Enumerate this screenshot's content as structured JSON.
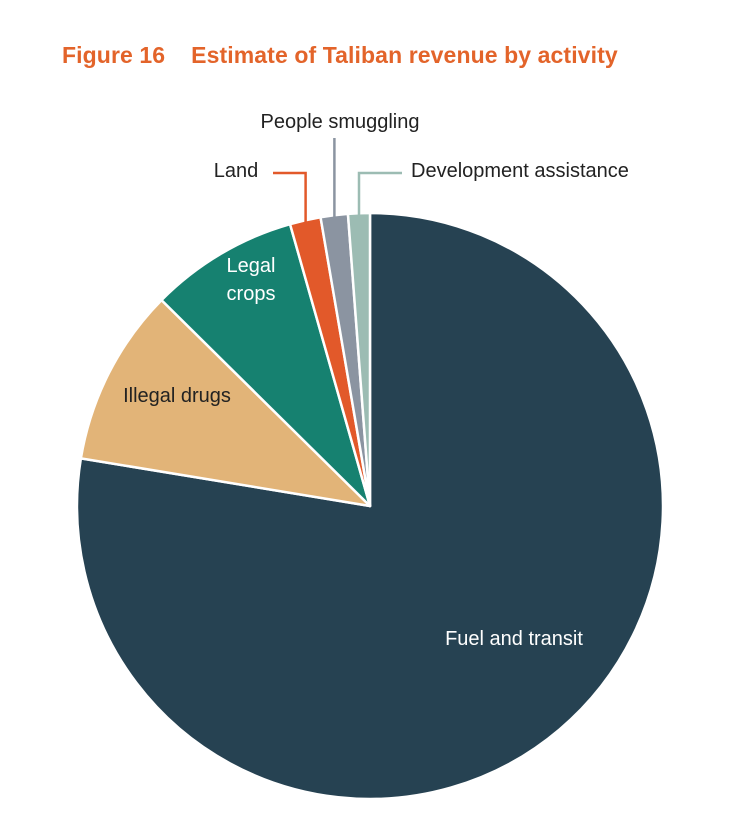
{
  "figure": {
    "number": "Figure 16",
    "title": "Estimate of Taliban revenue by activity"
  },
  "chart_data": {
    "type": "pie",
    "title": "Estimate of Taliban revenue by activity",
    "unit": "percent of estimated revenue",
    "start": "12 o'clock, clockwise",
    "slices": [
      {
        "label": "Fuel and transit",
        "value": 77.6,
        "color": "#264252",
        "label_color": "#ffffff",
        "label_placement": "inside"
      },
      {
        "label": "Illegal drugs",
        "value": 9.8,
        "color": "#e2b478",
        "label_color": "#222222",
        "label_placement": "inside"
      },
      {
        "label": "Legal crops",
        "label_lines": [
          "Legal",
          "crops"
        ],
        "value": 8.2,
        "color": "#168170",
        "label_color": "#ffffff",
        "label_placement": "inside"
      },
      {
        "label": "Land",
        "value": 1.7,
        "color": "#e2592a",
        "label_color": "#222222",
        "label_placement": "outside"
      },
      {
        "label": "People smuggling",
        "value": 1.5,
        "color": "#8b94a1",
        "label_color": "#222222",
        "label_placement": "outside"
      },
      {
        "label": "Development assistance",
        "value": 1.2,
        "color": "#9cbcb3",
        "label_color": "#222222",
        "label_placement": "outside"
      }
    ]
  }
}
